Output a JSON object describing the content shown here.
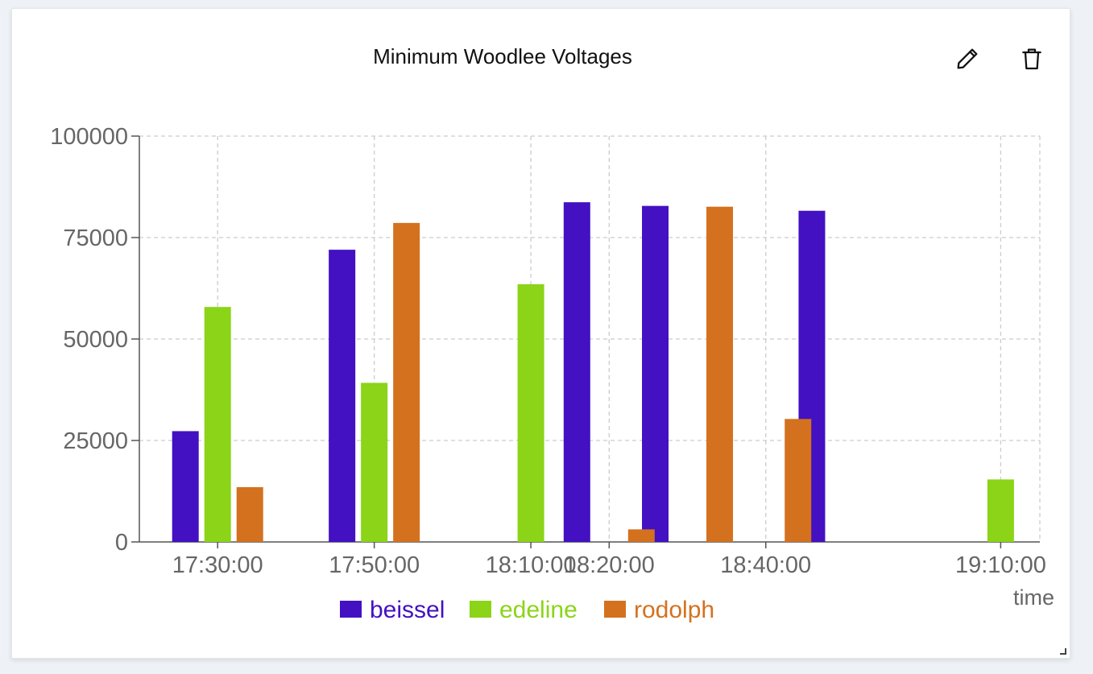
{
  "panel": {
    "title": "Minimum Woodlee Voltages",
    "edit_icon": "pencil-icon",
    "delete_icon": "trash-icon"
  },
  "chart_data": {
    "type": "bar",
    "title": "Minimum Woodlee Voltages",
    "xlabel": "time",
    "ylabel": "",
    "ylim": [
      0,
      100000
    ],
    "yticks": [
      0,
      25000,
      50000,
      75000,
      100000
    ],
    "grid": true,
    "legend": "bottom-center",
    "x_ticks": [
      "17:30:00",
      "17:50:00",
      "18:10:00",
      "18:20:00",
      "18:40:00",
      "19:10:00"
    ],
    "series": [
      {
        "name": "beissel",
        "color": "#4311c2",
        "points": [
          {
            "x": "17:30:00",
            "y": 27300
          },
          {
            "x": "17:50:00",
            "y": 72000
          },
          {
            "x": "18:20:00",
            "y": 83700
          },
          {
            "x": "18:30:00",
            "y": 82800
          },
          {
            "x": "18:50:00",
            "y": 81600
          }
        ]
      },
      {
        "name": "edeline",
        "color": "#8bd418",
        "points": [
          {
            "x": "17:30:00",
            "y": 57900
          },
          {
            "x": "17:50:00",
            "y": 39200
          },
          {
            "x": "18:10:00",
            "y": 63500
          },
          {
            "x": "19:10:00",
            "y": 15400
          }
        ]
      },
      {
        "name": "rodolph",
        "color": "#d4711f",
        "points": [
          {
            "x": "17:30:00",
            "y": 13500
          },
          {
            "x": "17:50:00",
            "y": 78600
          },
          {
            "x": "18:20:00",
            "y": 3100
          },
          {
            "x": "18:30:00",
            "y": 82600
          },
          {
            "x": "18:40:00",
            "y": 30300
          }
        ]
      }
    ]
  }
}
